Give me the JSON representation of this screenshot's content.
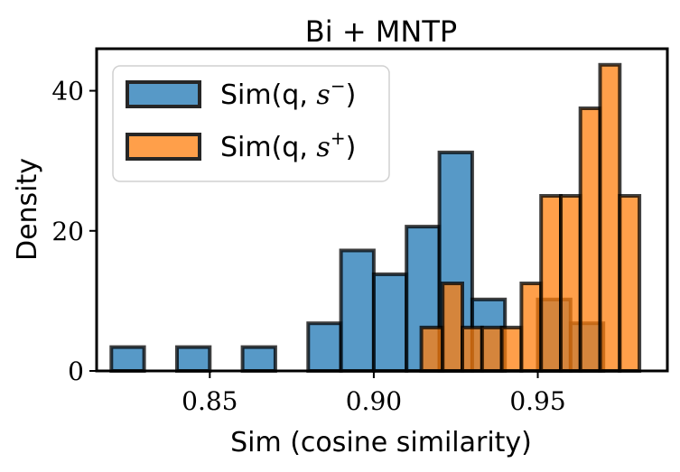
{
  "chart_data": {
    "type": "histogram",
    "title": "Bi + MNTP",
    "xlabel": "Sim (cosine similarity)",
    "ylabel": "Density",
    "xlim": [
      0.8155,
      0.9895
    ],
    "ylim": [
      0,
      46
    ],
    "xticks": [
      0.85,
      0.9,
      0.95
    ],
    "xtick_labels": [
      "0.85",
      "0.90",
      "0.95"
    ],
    "yticks": [
      0,
      20,
      40
    ],
    "ytick_labels": [
      "0",
      "20",
      "40"
    ],
    "grid": false,
    "legend_position": "top-left",
    "series": [
      {
        "name": "Sim(q, s−)",
        "legend_main": "Sim(q, ",
        "legend_symbol": "s",
        "legend_sup": "−",
        "legend_close": ")",
        "color": "#1f77b4",
        "bins": [
          {
            "x0": 0.82,
            "x1": 0.83,
            "density": 3.4
          },
          {
            "x0": 0.83,
            "x1": 0.84,
            "density": 0.0
          },
          {
            "x0": 0.84,
            "x1": 0.85,
            "density": 3.4
          },
          {
            "x0": 0.85,
            "x1": 0.86,
            "density": 0.0
          },
          {
            "x0": 0.86,
            "x1": 0.87,
            "density": 3.4
          },
          {
            "x0": 0.87,
            "x1": 0.88,
            "density": 0.0
          },
          {
            "x0": 0.88,
            "x1": 0.89,
            "density": 6.8
          },
          {
            "x0": 0.89,
            "x1": 0.9,
            "density": 17.2
          },
          {
            "x0": 0.9,
            "x1": 0.91,
            "density": 13.8
          },
          {
            "x0": 0.91,
            "x1": 0.92,
            "density": 20.6
          },
          {
            "x0": 0.92,
            "x1": 0.93,
            "density": 31.2
          },
          {
            "x0": 0.93,
            "x1": 0.94,
            "density": 10.2
          },
          {
            "x0": 0.94,
            "x1": 0.95,
            "density": 0.0
          },
          {
            "x0": 0.95,
            "x1": 0.96,
            "density": 10.2
          },
          {
            "x0": 0.96,
            "x1": 0.97,
            "density": 6.8
          }
        ]
      },
      {
        "name": "Sim(q, s+)",
        "legend_main": "Sim(q, ",
        "legend_symbol": "s",
        "legend_sup": "+",
        "legend_close": ")",
        "color": "#ff7f0e",
        "bins": [
          {
            "x0": 0.9145,
            "x1": 0.921,
            "density": 6.2
          },
          {
            "x0": 0.921,
            "x1": 0.927,
            "density": 12.5
          },
          {
            "x0": 0.927,
            "x1": 0.933,
            "density": 6.2
          },
          {
            "x0": 0.933,
            "x1": 0.939,
            "density": 6.2
          },
          {
            "x0": 0.939,
            "x1": 0.945,
            "density": 6.2
          },
          {
            "x0": 0.945,
            "x1": 0.951,
            "density": 12.5
          },
          {
            "x0": 0.951,
            "x1": 0.957,
            "density": 25.0
          },
          {
            "x0": 0.957,
            "x1": 0.963,
            "density": 25.0
          },
          {
            "x0": 0.963,
            "x1": 0.969,
            "density": 37.5
          },
          {
            "x0": 0.969,
            "x1": 0.975,
            "density": 43.7
          },
          {
            "x0": 0.975,
            "x1": 0.981,
            "density": 25.0
          }
        ]
      }
    ]
  }
}
